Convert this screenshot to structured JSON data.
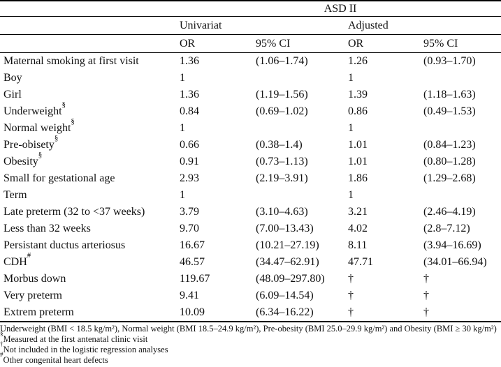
{
  "table": {
    "title": "ASD II",
    "group_headers": {
      "univariat": "Univariat",
      "adjusted": "Adjusted"
    },
    "col_headers": {
      "or1": "OR",
      "ci1": "95% CI",
      "or2": "OR",
      "ci2": "95% CI"
    },
    "rows": [
      {
        "label": "Maternal smoking at first visit",
        "marker": "",
        "uni_or": "1.36",
        "uni_ci": "(1.06–1.74)",
        "adj_or": "1.26",
        "adj_ci": "(0.93–1.70)"
      },
      {
        "label": "Boy",
        "marker": "",
        "uni_or": "1",
        "uni_ci": "",
        "adj_or": "1",
        "adj_ci": ""
      },
      {
        "label": "Girl",
        "marker": "",
        "uni_or": "1.36",
        "uni_ci": "(1.19–1.56)",
        "adj_or": "1.39",
        "adj_ci": "(1.18–1.63)"
      },
      {
        "label": "Underweight",
        "marker": "§",
        "uni_or": "0.84",
        "uni_ci": "(0.69–1.02)",
        "adj_or": "0.86",
        "adj_ci": "(0.49–1.53)"
      },
      {
        "label": "Normal weight",
        "marker": "§",
        "uni_or": "1",
        "uni_ci": "",
        "adj_or": "1",
        "adj_ci": ""
      },
      {
        "label": "Pre-obisety",
        "marker": "§",
        "uni_or": "0.66",
        "uni_ci": "(0.38–1.4)",
        "adj_or": "1.01",
        "adj_ci": "(0.84–1.23)"
      },
      {
        "label": "Obesity",
        "marker": "§",
        "uni_or": "0.91",
        "uni_ci": "(0.73–1.13)",
        "adj_or": "1.01",
        "adj_ci": "(0.80–1.28)"
      },
      {
        "label": "Small for gestational age",
        "marker": "",
        "uni_or": "2.93",
        "uni_ci": "(2.19–3.91)",
        "adj_or": "1.86",
        "adj_ci": "(1.29–2.68)"
      },
      {
        "label": "Term",
        "marker": "",
        "uni_or": "1",
        "uni_ci": "",
        "adj_or": "1",
        "adj_ci": ""
      },
      {
        "label": "Late preterm (32 to <37 weeks)",
        "marker": "",
        "uni_or": "3.79",
        "uni_ci": "(3.10–4.63)",
        "adj_or": "3.21",
        "adj_ci": "(2.46–4.19)"
      },
      {
        "label": "Less than 32 weeks",
        "marker": "",
        "uni_or": "9.70",
        "uni_ci": "(7.00–13.43)",
        "adj_or": "4.02",
        "adj_ci": "(2.8–7.12)"
      },
      {
        "label": "Persistant ductus arteriosus",
        "marker": "",
        "uni_or": "16.67",
        "uni_ci": "(10.21–27.19)",
        "adj_or": "8.11",
        "adj_ci": "(3.94–16.69)"
      },
      {
        "label": "CDH",
        "marker": "#",
        "uni_or": "46.57",
        "uni_ci": "(34.47–62.91)",
        "adj_or": "47.71",
        "adj_ci": "(34.01–66.94)"
      },
      {
        "label": "Morbus down",
        "marker": "",
        "uni_or": "119.67",
        "uni_ci": "(48.09–297.80)",
        "adj_or": "†",
        "adj_ci": "†"
      },
      {
        "label": "Very preterm",
        "marker": "",
        "uni_or": "9.41",
        "uni_ci": "(6.09–14.54)",
        "adj_or": "†",
        "adj_ci": "†"
      },
      {
        "label": "Extrem preterm",
        "marker": "",
        "uni_or": "10.09",
        "uni_ci": "(6.34–16.22)",
        "adj_or": "†",
        "adj_ci": "†"
      }
    ]
  },
  "footnotes": [
    {
      "marker": "",
      "text": "Underweight (BMI < 18.5 kg/m²), Normal weight (BMI 18.5–24.9 kg/m²), Pre-obesity (BMI 25.0–29.9 kg/m²) and Obesity (BMI ≥ 30 kg/m²)"
    },
    {
      "marker": "§",
      "text": "Measured at the first antenatal clinic visit"
    },
    {
      "marker": "†",
      "text": "Not included in the logistic regression analyses"
    },
    {
      "marker": "#",
      "text": "Other congenital heart defects"
    }
  ]
}
